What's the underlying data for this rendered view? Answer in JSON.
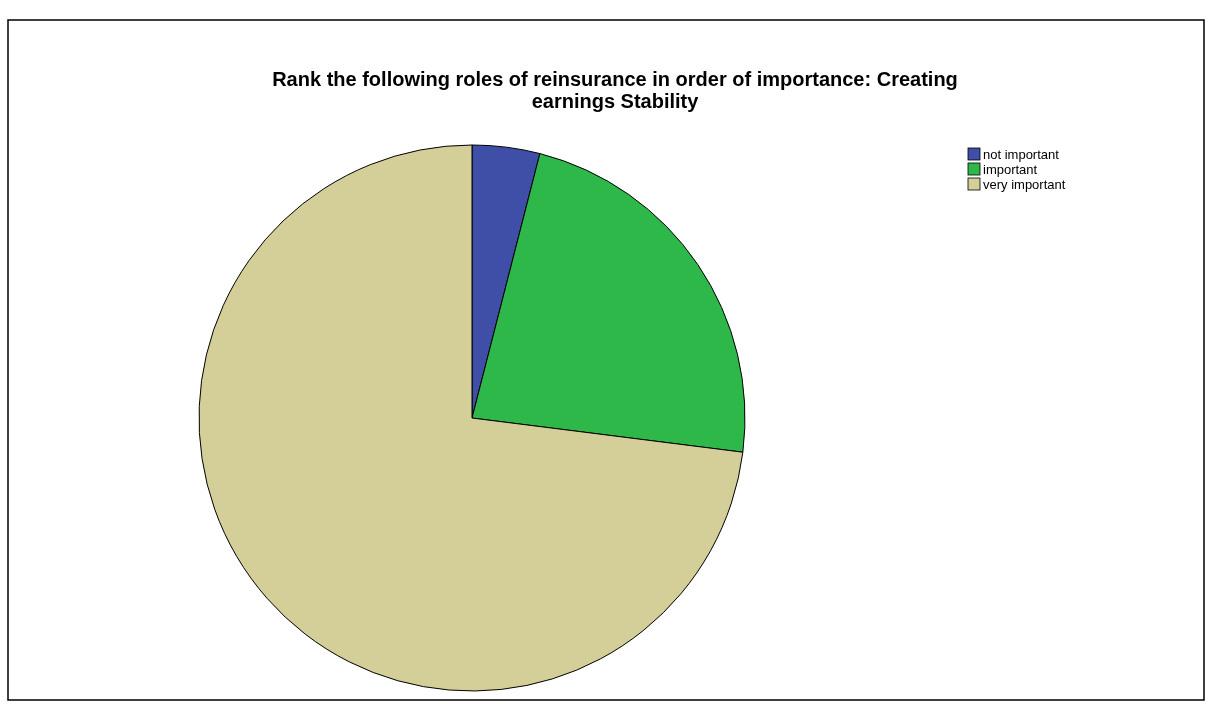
{
  "chart_data": {
    "type": "pie",
    "title": "Rank the following roles of reinsurance in order of importance: Creating earnings Stability",
    "categories": [
      "not important",
      "important",
      "very important"
    ],
    "values": [
      4,
      23,
      73
    ],
    "colors": [
      "#3f4fa8",
      "#2fb84a",
      "#d4cf98"
    ],
    "legend": "top right"
  }
}
